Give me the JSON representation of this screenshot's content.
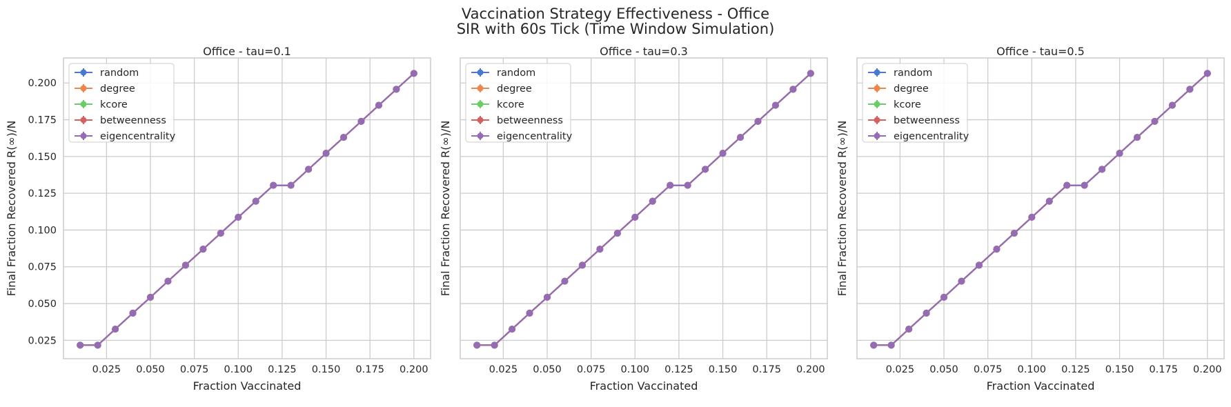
{
  "figure": {
    "suptitle_line1": "Vaccination Strategy Effectiveness - Office",
    "suptitle_line2": "SIR with 60s Tick (Time Window Simulation)"
  },
  "colors": {
    "random": "#4878d0",
    "degree": "#ee854a",
    "kcore": "#6acc64",
    "betweenness": "#d65f5f",
    "eigencentrality": "#956cb4",
    "grid": "#cccccc",
    "spine": "#cccccc",
    "text": "#262626"
  },
  "chart_data": [
    {
      "type": "line",
      "title": "Office - tau=0.1",
      "xlabel": "Fraction Vaccinated",
      "ylabel": "Final Fraction Recovered R(∞)/N",
      "xlim": [
        0.0005,
        0.2095
      ],
      "ylim": [
        0.0125,
        0.217
      ],
      "xticks": [
        "0.025",
        "0.050",
        "0.075",
        "0.100",
        "0.125",
        "0.150",
        "0.175",
        "0.200"
      ],
      "yticks": [
        "0.025",
        "0.050",
        "0.075",
        "0.100",
        "0.125",
        "0.150",
        "0.175",
        "0.200"
      ],
      "grid": true,
      "legend_position": "upper-left",
      "x": [
        0.01,
        0.02,
        0.03,
        0.04,
        0.05,
        0.06,
        0.07,
        0.08,
        0.09,
        0.1,
        0.11,
        0.12,
        0.13,
        0.14,
        0.15,
        0.16,
        0.17,
        0.18,
        0.19,
        0.2
      ],
      "series": [
        {
          "name": "random",
          "values": [
            0.0217,
            0.0217,
            0.0326,
            0.0435,
            0.0543,
            0.0652,
            0.0761,
            0.087,
            0.0978,
            0.1087,
            0.1196,
            0.1304,
            0.1304,
            0.1413,
            0.1522,
            0.163,
            0.1739,
            0.1848,
            0.1957,
            0.2065
          ]
        },
        {
          "name": "degree",
          "values": [
            0.0217,
            0.0217,
            0.0326,
            0.0435,
            0.0543,
            0.0652,
            0.0761,
            0.087,
            0.0978,
            0.1087,
            0.1196,
            0.1304,
            0.1304,
            0.1413,
            0.1522,
            0.163,
            0.1739,
            0.1848,
            0.1957,
            0.2065
          ]
        },
        {
          "name": "kcore",
          "values": [
            0.0217,
            0.0217,
            0.0326,
            0.0435,
            0.0543,
            0.0652,
            0.0761,
            0.087,
            0.0978,
            0.1087,
            0.1196,
            0.1304,
            0.1304,
            0.1413,
            0.1522,
            0.163,
            0.1739,
            0.1848,
            0.1957,
            0.2065
          ]
        },
        {
          "name": "betweenness",
          "values": [
            0.0217,
            0.0217,
            0.0326,
            0.0435,
            0.0543,
            0.0652,
            0.0761,
            0.087,
            0.0978,
            0.1087,
            0.1196,
            0.1304,
            0.1304,
            0.1413,
            0.1522,
            0.163,
            0.1739,
            0.1848,
            0.1957,
            0.2065
          ]
        },
        {
          "name": "eigencentrality",
          "values": [
            0.0217,
            0.0217,
            0.0326,
            0.0435,
            0.0543,
            0.0652,
            0.0761,
            0.087,
            0.0978,
            0.1087,
            0.1196,
            0.1304,
            0.1304,
            0.1413,
            0.1522,
            0.163,
            0.1739,
            0.1848,
            0.1957,
            0.2065
          ]
        }
      ]
    },
    {
      "type": "line",
      "title": "Office - tau=0.3",
      "xlabel": "Fraction Vaccinated",
      "ylabel": "Final Fraction Recovered R(∞)/N",
      "xlim": [
        0.0005,
        0.2095
      ],
      "ylim": [
        0.0125,
        0.217
      ],
      "xticks": [
        "0.025",
        "0.050",
        "0.075",
        "0.100",
        "0.125",
        "0.150",
        "0.175",
        "0.200"
      ],
      "yticks": [],
      "grid": true,
      "legend_position": "upper-left",
      "x": [
        0.01,
        0.02,
        0.03,
        0.04,
        0.05,
        0.06,
        0.07,
        0.08,
        0.09,
        0.1,
        0.11,
        0.12,
        0.13,
        0.14,
        0.15,
        0.16,
        0.17,
        0.18,
        0.19,
        0.2
      ],
      "series": [
        {
          "name": "random",
          "values": [
            0.0217,
            0.0217,
            0.0326,
            0.0435,
            0.0543,
            0.0652,
            0.0761,
            0.087,
            0.0978,
            0.1087,
            0.1196,
            0.1304,
            0.1304,
            0.1413,
            0.1522,
            0.163,
            0.1739,
            0.1848,
            0.1957,
            0.2065
          ]
        },
        {
          "name": "degree",
          "values": [
            0.0217,
            0.0217,
            0.0326,
            0.0435,
            0.0543,
            0.0652,
            0.0761,
            0.087,
            0.0978,
            0.1087,
            0.1196,
            0.1304,
            0.1304,
            0.1413,
            0.1522,
            0.163,
            0.1739,
            0.1848,
            0.1957,
            0.2065
          ]
        },
        {
          "name": "kcore",
          "values": [
            0.0217,
            0.0217,
            0.0326,
            0.0435,
            0.0543,
            0.0652,
            0.0761,
            0.087,
            0.0978,
            0.1087,
            0.1196,
            0.1304,
            0.1304,
            0.1413,
            0.1522,
            0.163,
            0.1739,
            0.1848,
            0.1957,
            0.2065
          ]
        },
        {
          "name": "betweenness",
          "values": [
            0.0217,
            0.0217,
            0.0326,
            0.0435,
            0.0543,
            0.0652,
            0.0761,
            0.087,
            0.0978,
            0.1087,
            0.1196,
            0.1304,
            0.1304,
            0.1413,
            0.1522,
            0.163,
            0.1739,
            0.1848,
            0.1957,
            0.2065
          ]
        },
        {
          "name": "eigencentrality",
          "values": [
            0.0217,
            0.0217,
            0.0326,
            0.0435,
            0.0543,
            0.0652,
            0.0761,
            0.087,
            0.0978,
            0.1087,
            0.1196,
            0.1304,
            0.1304,
            0.1413,
            0.1522,
            0.163,
            0.1739,
            0.1848,
            0.1957,
            0.2065
          ]
        }
      ]
    },
    {
      "type": "line",
      "title": "Office - tau=0.5",
      "xlabel": "Fraction Vaccinated",
      "ylabel": "Final Fraction Recovered R(∞)/N",
      "xlim": [
        0.0005,
        0.2095
      ],
      "ylim": [
        0.0125,
        0.217
      ],
      "xticks": [
        "0.025",
        "0.050",
        "0.075",
        "0.100",
        "0.125",
        "0.150",
        "0.175",
        "0.200"
      ],
      "yticks": [],
      "grid": true,
      "legend_position": "upper-left",
      "x": [
        0.01,
        0.02,
        0.03,
        0.04,
        0.05,
        0.06,
        0.07,
        0.08,
        0.09,
        0.1,
        0.11,
        0.12,
        0.13,
        0.14,
        0.15,
        0.16,
        0.17,
        0.18,
        0.19,
        0.2
      ],
      "series": [
        {
          "name": "random",
          "values": [
            0.0217,
            0.0217,
            0.0326,
            0.0435,
            0.0543,
            0.0652,
            0.0761,
            0.087,
            0.0978,
            0.1087,
            0.1196,
            0.1304,
            0.1304,
            0.1413,
            0.1522,
            0.163,
            0.1739,
            0.1848,
            0.1957,
            0.2065
          ]
        },
        {
          "name": "degree",
          "values": [
            0.0217,
            0.0217,
            0.0326,
            0.0435,
            0.0543,
            0.0652,
            0.0761,
            0.087,
            0.0978,
            0.1087,
            0.1196,
            0.1304,
            0.1304,
            0.1413,
            0.1522,
            0.163,
            0.1739,
            0.1848,
            0.1957,
            0.2065
          ]
        },
        {
          "name": "kcore",
          "values": [
            0.0217,
            0.0217,
            0.0326,
            0.0435,
            0.0543,
            0.0652,
            0.0761,
            0.087,
            0.0978,
            0.1087,
            0.1196,
            0.1304,
            0.1304,
            0.1413,
            0.1522,
            0.163,
            0.1739,
            0.1848,
            0.1957,
            0.2065
          ]
        },
        {
          "name": "betweenness",
          "values": [
            0.0217,
            0.0217,
            0.0326,
            0.0435,
            0.0543,
            0.0652,
            0.0761,
            0.087,
            0.0978,
            0.1087,
            0.1196,
            0.1304,
            0.1304,
            0.1413,
            0.1522,
            0.163,
            0.1739,
            0.1848,
            0.1957,
            0.2065
          ]
        },
        {
          "name": "eigencentrality",
          "values": [
            0.0217,
            0.0217,
            0.0326,
            0.0435,
            0.0543,
            0.0652,
            0.0761,
            0.087,
            0.0978,
            0.1087,
            0.1196,
            0.1304,
            0.1304,
            0.1413,
            0.1522,
            0.163,
            0.1739,
            0.1848,
            0.1957,
            0.2065
          ]
        }
      ]
    }
  ]
}
